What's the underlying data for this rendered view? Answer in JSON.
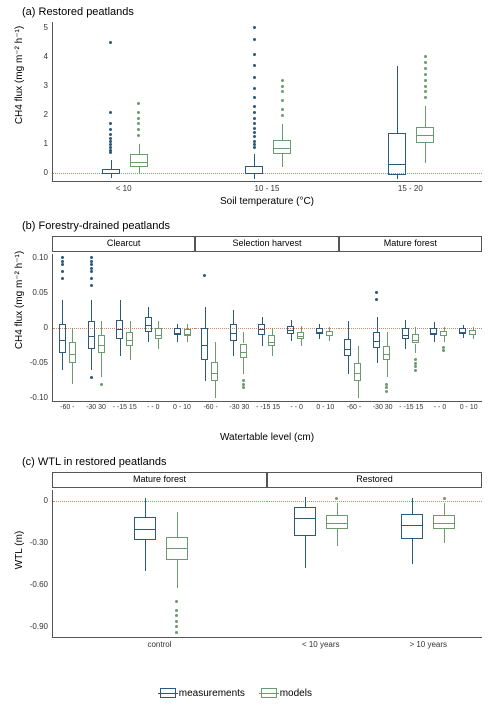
{
  "colors": {
    "measurements": "#2d5a7b",
    "models": "#6b9b6e",
    "refline": "#cc8866",
    "axis": "#555555",
    "bg": "#ffffff"
  },
  "legend": {
    "items": [
      {
        "label": "measurements",
        "color_key": "measurements"
      },
      {
        "label": "models",
        "color_key": "models"
      }
    ]
  },
  "panel_a": {
    "title": "(a) Restored peatlands",
    "ylabel": "CH4 flux (mg m⁻² h⁻¹)",
    "xlabel": "Soil temperature (°C)",
    "ylim": [
      -0.3,
      5.2
    ],
    "yticks": [
      0,
      1,
      2,
      3,
      4,
      5
    ],
    "xticks": [
      "< 10",
      "10 - 15",
      "15 - 20"
    ],
    "refline_y": 0,
    "groups": [
      {
        "cat": "< 10",
        "boxes": [
          {
            "series": "measurements",
            "q1": -0.02,
            "med": 0.03,
            "q3": 0.15,
            "lw": -0.15,
            "uw": 0.45,
            "out": [
              0.7,
              0.8,
              0.9,
              1.0,
              1.1,
              1.2,
              1.35,
              1.5,
              1.7,
              2.1,
              4.5
            ]
          },
          {
            "series": "models",
            "q1": 0.2,
            "med": 0.42,
            "q3": 0.65,
            "lw": 0.0,
            "uw": 1.0,
            "out": [
              1.3,
              1.5,
              1.7,
              1.9,
              2.1,
              2.4
            ]
          }
        ]
      },
      {
        "cat": "10 - 15",
        "boxes": [
          {
            "series": "measurements",
            "q1": -0.02,
            "med": 0.05,
            "q3": 0.25,
            "lw": -0.2,
            "uw": 0.65,
            "out": [
              0.9,
              1.0,
              1.1,
              1.25,
              1.4,
              1.55,
              1.7,
              1.9,
              2.1,
              2.3,
              2.6,
              2.9,
              3.3,
              3.7,
              4.1,
              4.6,
              5.0
            ]
          },
          {
            "series": "models",
            "q1": 0.65,
            "med": 0.92,
            "q3": 1.15,
            "lw": 0.2,
            "uw": 1.7,
            "out": [
              2.0,
              2.2,
              2.5,
              2.8,
              3.0,
              3.2
            ]
          }
        ]
      },
      {
        "cat": "15 - 20",
        "boxes": [
          {
            "series": "measurements",
            "q1": -0.05,
            "med": 0.35,
            "q3": 1.4,
            "lw": -0.2,
            "uw": 3.7,
            "out": []
          },
          {
            "series": "models",
            "q1": 1.05,
            "med": 1.35,
            "q3": 1.6,
            "lw": 0.35,
            "uw": 2.3,
            "out": [
              2.6,
              2.8,
              3.0,
              3.2,
              3.4,
              3.6,
              3.8,
              4.0
            ]
          }
        ]
      }
    ]
  },
  "panel_b": {
    "title": "(b) Forestry-drained peatlands",
    "ylabel": "CH4 flux (mg m⁻² h⁻¹)",
    "xlabel": "Watertable level (cm)",
    "ylim": [
      -0.105,
      0.105
    ],
    "yticks": [
      -0.1,
      -0.05,
      0.0,
      0.05,
      0.1
    ],
    "refline_y": 0,
    "xticks": [
      "-60 -",
      "-30 30",
      "- -15 15",
      "- - 0",
      "0 - 10"
    ],
    "facets": [
      {
        "label": "Clearcut",
        "groups": [
          {
            "boxes": [
              {
                "series": "measurements",
                "q1": -0.035,
                "med": -0.015,
                "q3": 0.005,
                "lw": -0.06,
                "uw": 0.04,
                "out": [
                  0.07,
                  0.08,
                  0.09,
                  0.095,
                  0.1
                ]
              },
              {
                "series": "models",
                "q1": -0.05,
                "med": -0.035,
                "q3": -0.02,
                "lw": -0.08,
                "uw": 0.0,
                "out": []
              }
            ]
          },
          {
            "boxes": [
              {
                "series": "measurements",
                "q1": -0.03,
                "med": -0.01,
                "q3": 0.01,
                "lw": -0.06,
                "uw": 0.04,
                "out": [
                  -0.07,
                  0.06,
                  0.07,
                  0.08,
                  0.085,
                  0.09,
                  0.095,
                  0.1
                ]
              },
              {
                "series": "models",
                "q1": -0.035,
                "med": -0.022,
                "q3": -0.01,
                "lw": -0.07,
                "uw": 0.01,
                "out": [
                  -0.08
                ]
              }
            ]
          },
          {
            "boxes": [
              {
                "series": "measurements",
                "q1": -0.015,
                "med": 0.0,
                "q3": 0.012,
                "lw": -0.04,
                "uw": 0.04,
                "out": []
              },
              {
                "series": "models",
                "q1": -0.025,
                "med": -0.015,
                "q3": -0.005,
                "lw": -0.045,
                "uw": 0.01,
                "out": []
              }
            ]
          },
          {
            "boxes": [
              {
                "series": "measurements",
                "q1": -0.005,
                "med": 0.005,
                "q3": 0.015,
                "lw": -0.02,
                "uw": 0.03,
                "out": []
              },
              {
                "series": "models",
                "q1": -0.015,
                "med": -0.008,
                "q3": 0.0,
                "lw": -0.03,
                "uw": 0.01,
                "out": []
              }
            ]
          },
          {
            "boxes": [
              {
                "series": "measurements",
                "q1": -0.01,
                "med": -0.005,
                "q3": 0.0,
                "lw": -0.02,
                "uw": 0.005,
                "out": []
              },
              {
                "series": "models",
                "q1": -0.012,
                "med": -0.007,
                "q3": -0.002,
                "lw": -0.02,
                "uw": 0.005,
                "out": []
              }
            ]
          }
        ]
      },
      {
        "label": "Selection harvest",
        "groups": [
          {
            "boxes": [
              {
                "series": "measurements",
                "q1": -0.045,
                "med": -0.022,
                "q3": 0.0,
                "lw": -0.075,
                "uw": 0.03,
                "out": [
                  0.075
                ]
              },
              {
                "series": "models",
                "q1": -0.075,
                "med": -0.062,
                "q3": -0.048,
                "lw": -0.1,
                "uw": -0.02,
                "out": []
              }
            ]
          },
          {
            "boxes": [
              {
                "series": "measurements",
                "q1": -0.018,
                "med": -0.005,
                "q3": 0.005,
                "lw": -0.04,
                "uw": 0.025,
                "out": []
              },
              {
                "series": "models",
                "q1": -0.042,
                "med": -0.032,
                "q3": -0.022,
                "lw": -0.065,
                "uw": -0.005,
                "out": [
                  -0.075,
                  -0.08,
                  -0.085
                ]
              }
            ]
          },
          {
            "boxes": [
              {
                "series": "measurements",
                "q1": -0.01,
                "med": 0.0,
                "q3": 0.005,
                "lw": -0.025,
                "uw": 0.015,
                "out": []
              },
              {
                "series": "models",
                "q1": -0.025,
                "med": -0.018,
                "q3": -0.01,
                "lw": -0.04,
                "uw": 0.0,
                "out": []
              }
            ]
          },
          {
            "boxes": [
              {
                "series": "measurements",
                "q1": -0.008,
                "med": -0.002,
                "q3": 0.003,
                "lw": -0.018,
                "uw": 0.012,
                "out": []
              },
              {
                "series": "models",
                "q1": -0.015,
                "med": -0.01,
                "q3": -0.005,
                "lw": -0.025,
                "uw": 0.003,
                "out": []
              }
            ]
          },
          {
            "boxes": [
              {
                "series": "measurements",
                "q1": -0.008,
                "med": -0.004,
                "q3": 0.0,
                "lw": -0.015,
                "uw": 0.005,
                "out": []
              },
              {
                "series": "models",
                "q1": -0.012,
                "med": -0.008,
                "q3": -0.004,
                "lw": -0.018,
                "uw": 0.002,
                "out": []
              }
            ]
          }
        ]
      },
      {
        "label": "Mature forest",
        "groups": [
          {
            "boxes": [
              {
                "series": "measurements",
                "q1": -0.04,
                "med": -0.028,
                "q3": -0.015,
                "lw": -0.065,
                "uw": 0.01,
                "out": []
              },
              {
                "series": "models",
                "q1": -0.075,
                "med": -0.062,
                "q3": -0.05,
                "lw": -0.1,
                "uw": -0.025,
                "out": []
              }
            ]
          },
          {
            "boxes": [
              {
                "series": "measurements",
                "q1": -0.028,
                "med": -0.017,
                "q3": -0.005,
                "lw": -0.05,
                "uw": 0.015,
                "out": [
                  0.04,
                  0.05
                ]
              },
              {
                "series": "models",
                "q1": -0.045,
                "med": -0.035,
                "q3": -0.025,
                "lw": -0.07,
                "uw": -0.005,
                "out": [
                  -0.08,
                  -0.085,
                  -0.09
                ]
              }
            ]
          },
          {
            "boxes": [
              {
                "series": "measurements",
                "q1": -0.015,
                "med": -0.008,
                "q3": 0.0,
                "lw": -0.03,
                "uw": 0.012,
                "out": []
              },
              {
                "series": "models",
                "q1": -0.022,
                "med": -0.015,
                "q3": -0.008,
                "lw": -0.035,
                "uw": 0.002,
                "out": [
                  -0.045,
                  -0.05,
                  -0.055,
                  -0.06
                ]
              }
            ]
          },
          {
            "boxes": [
              {
                "series": "measurements",
                "q1": -0.01,
                "med": -0.005,
                "q3": 0.0,
                "lw": -0.02,
                "uw": 0.008,
                "out": []
              },
              {
                "series": "models",
                "q1": -0.012,
                "med": -0.008,
                "q3": -0.004,
                "lw": -0.02,
                "uw": 0.002,
                "out": [
                  -0.028,
                  -0.032
                ]
              }
            ]
          },
          {
            "boxes": [
              {
                "series": "measurements",
                "q1": -0.008,
                "med": -0.004,
                "q3": 0.0,
                "lw": -0.014,
                "uw": 0.004,
                "out": []
              },
              {
                "series": "models",
                "q1": -0.01,
                "med": -0.007,
                "q3": -0.003,
                "lw": -0.015,
                "uw": 0.001,
                "out": []
              }
            ]
          }
        ]
      }
    ]
  },
  "panel_c": {
    "title": "(c) WTL in restored peatlands",
    "ylabel": "WTL (m)",
    "ylim": [
      -0.98,
      0.08
    ],
    "yticks": [
      0.0,
      -0.3,
      -0.6,
      -0.9
    ],
    "refline_y": 0,
    "facets": [
      {
        "label": "Mature forest",
        "xticks": [
          "control"
        ],
        "groups": [
          {
            "boxes": [
              {
                "series": "measurements",
                "q1": -0.28,
                "med": -0.19,
                "q3": -0.11,
                "lw": -0.5,
                "uw": 0.02,
                "out": []
              },
              {
                "series": "models",
                "q1": -0.42,
                "med": -0.33,
                "q3": -0.26,
                "lw": -0.62,
                "uw": -0.08,
                "out": [
                  -0.72,
                  -0.78,
                  -0.82,
                  -0.86,
                  -0.9,
                  -0.94
                ]
              }
            ]
          }
        ]
      },
      {
        "label": "Restored",
        "xticks": [
          "< 10 years",
          "> 10 years"
        ],
        "groups": [
          {
            "boxes": [
              {
                "series": "measurements",
                "q1": -0.25,
                "med": -0.11,
                "q3": -0.04,
                "lw": -0.48,
                "uw": 0.03,
                "out": []
              },
              {
                "series": "models",
                "q1": -0.2,
                "med": -0.15,
                "q3": -0.1,
                "lw": -0.32,
                "uw": -0.01,
                "out": [
                  0.02
                ]
              }
            ]
          },
          {
            "boxes": [
              {
                "series": "measurements",
                "q1": -0.27,
                "med": -0.16,
                "q3": -0.09,
                "lw": -0.45,
                "uw": 0.02,
                "out": []
              },
              {
                "series": "models",
                "q1": -0.2,
                "med": -0.15,
                "q3": -0.1,
                "lw": -0.3,
                "uw": -0.01,
                "out": [
                  0.02
                ]
              }
            ]
          }
        ]
      }
    ]
  }
}
